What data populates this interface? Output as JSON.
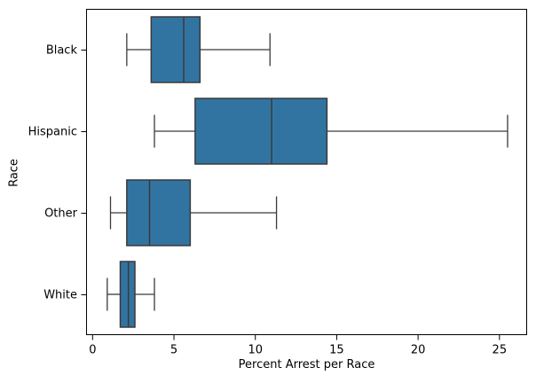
{
  "chart_data": {
    "type": "boxplot",
    "orientation": "horizontal",
    "xlabel": "Percent Arrest per Race",
    "ylabel": "Race",
    "xlim": [
      -0.4,
      26.7
    ],
    "xticks": [
      0,
      5,
      10,
      15,
      20,
      25
    ],
    "categories": [
      "Black",
      "Hispanic",
      "Other",
      "White"
    ],
    "series": [
      {
        "name": "Black",
        "whisker_low": 2.1,
        "q1": 3.6,
        "median": 5.6,
        "q3": 6.6,
        "whisker_high": 10.9
      },
      {
        "name": "Hispanic",
        "whisker_low": 3.8,
        "q1": 6.3,
        "median": 11.0,
        "q3": 14.4,
        "whisker_high": 25.5
      },
      {
        "name": "Other",
        "whisker_low": 1.1,
        "q1": 2.1,
        "median": 3.5,
        "q3": 6.0,
        "whisker_high": 11.3
      },
      {
        "name": "White",
        "whisker_low": 0.9,
        "q1": 1.7,
        "median": 2.2,
        "q3": 2.6,
        "whisker_high": 3.8
      }
    ],
    "grid": false,
    "colors": {
      "box_fill": "#3274a1",
      "box_edge": "#3a3a3a",
      "spine": "#000000",
      "text": "#000000",
      "background": "#ffffff"
    }
  }
}
